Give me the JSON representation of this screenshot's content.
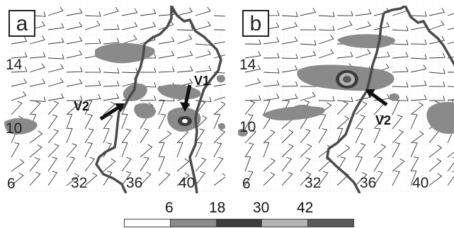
{
  "panels": [
    {
      "label": "a",
      "lat_labels": [
        "14",
        "10",
        "6"
      ],
      "lon_labels": [
        "32",
        "36",
        "40"
      ],
      "annotations": [
        "V2",
        "V1"
      ]
    },
    {
      "label": "b",
      "lat_labels": [
        "14",
        "10",
        "6"
      ],
      "lon_labels": [
        "32",
        "36",
        "40"
      ],
      "annotations": [
        "V2"
      ]
    }
  ],
  "legend": {
    "levels": [
      "6",
      "18",
      "30",
      "42"
    ],
    "colors": [
      "#ffffff",
      "#8a8a8a",
      "#3c3c3c",
      "#b4b4b4",
      "#5a5a5a"
    ]
  },
  "colors": {
    "border": "#4a4a4a",
    "shade": "#8a8a8a",
    "core": "#3c3c3c",
    "light": "#b4b4b4"
  }
}
